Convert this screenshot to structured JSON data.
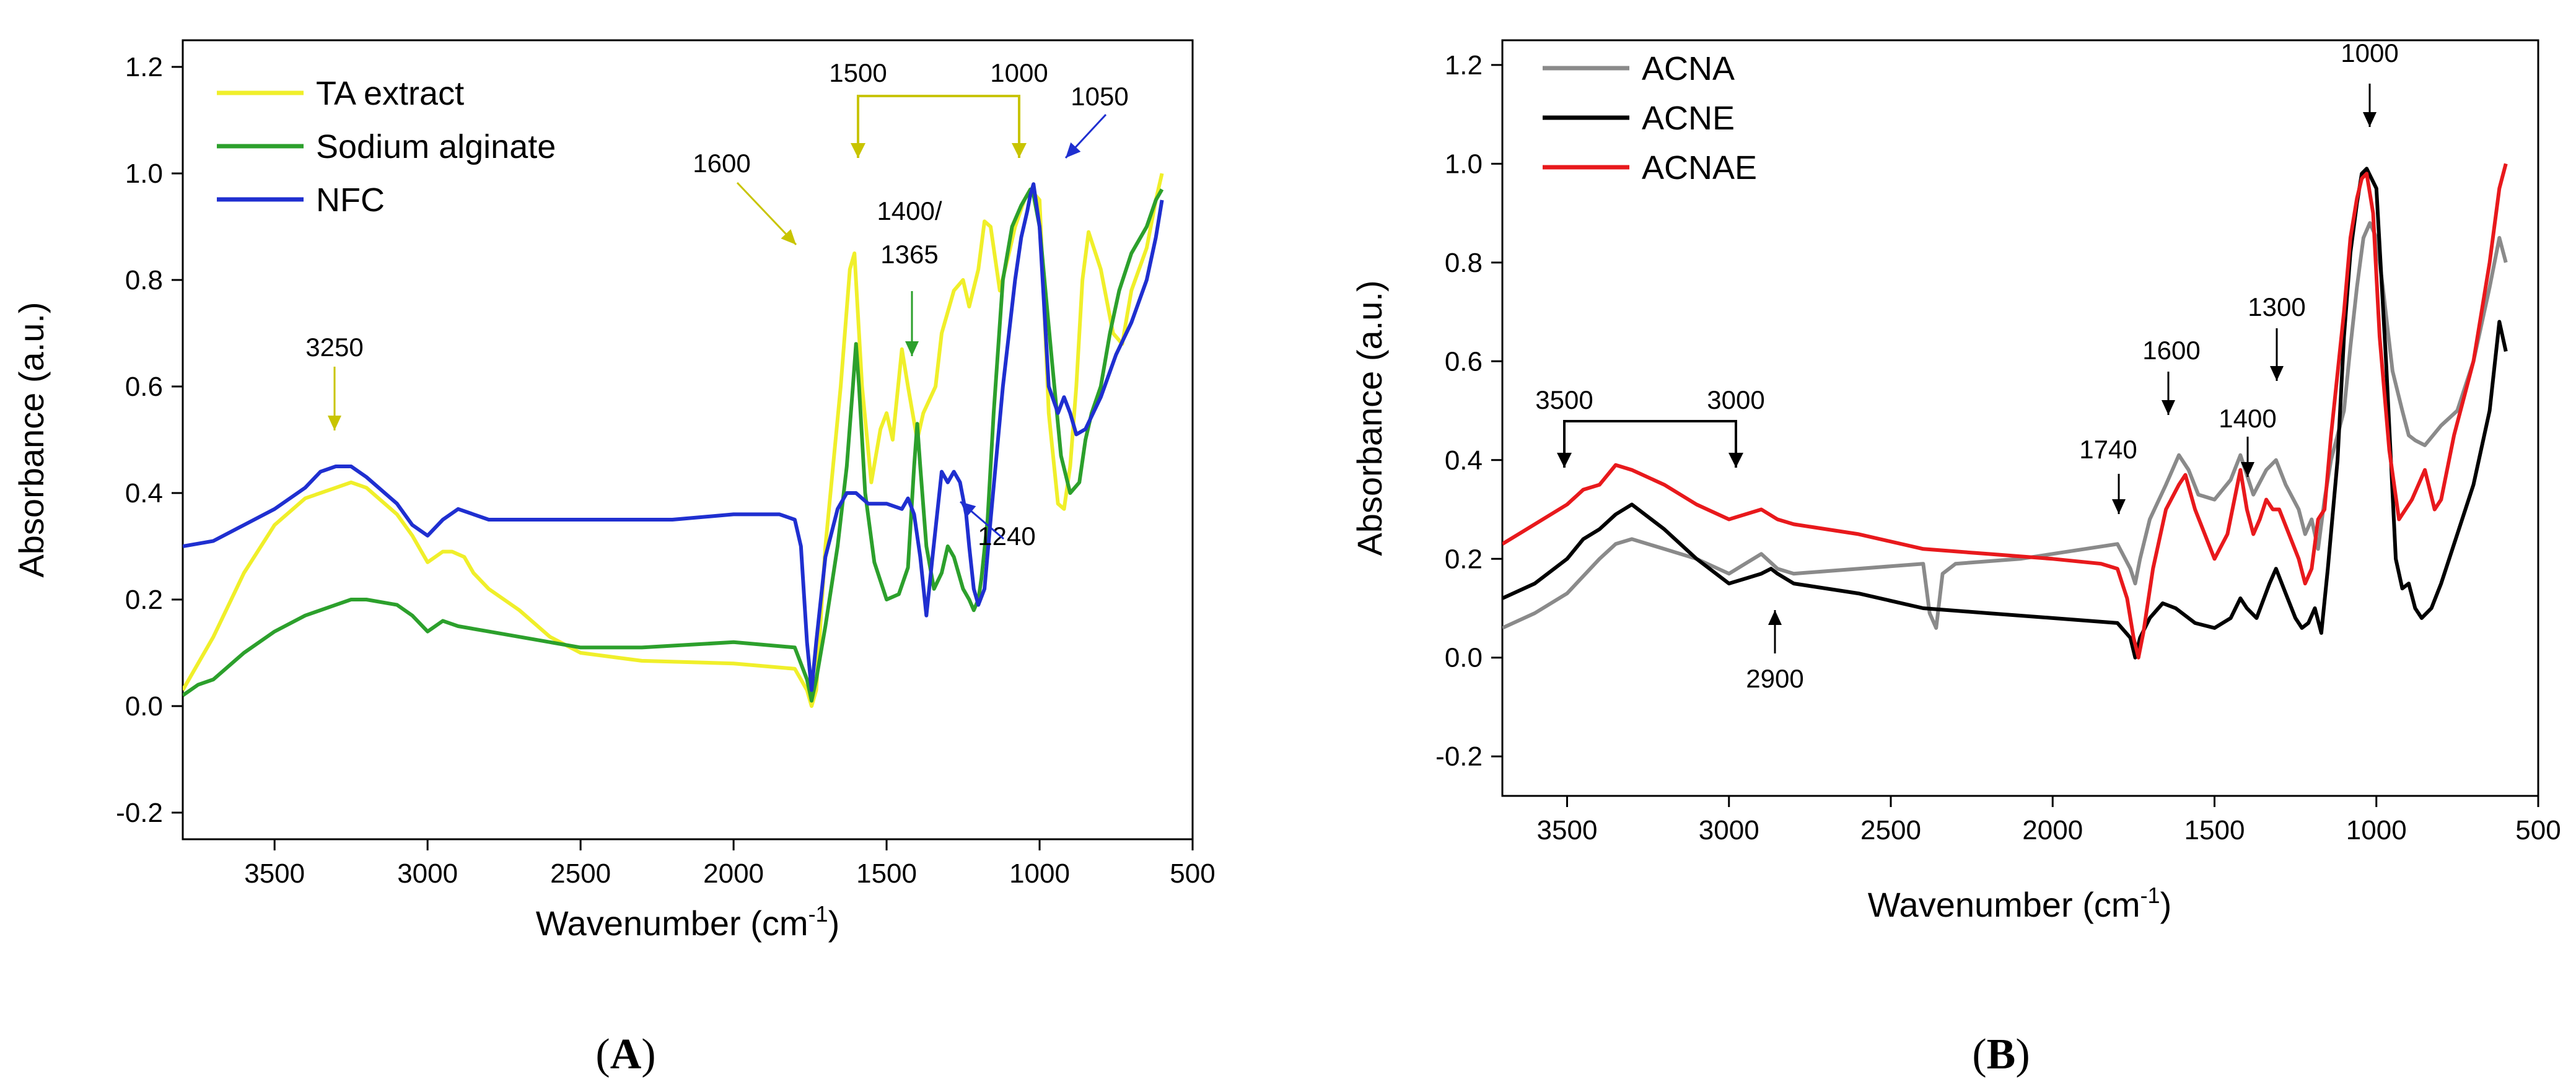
{
  "chart_data": [
    {
      "id": "A",
      "type": "line",
      "panel_label": "(A)",
      "xlabel": "Wavenumber (cm-1)",
      "xlabel_base": "Wavenumber (cm",
      "xlabel_sup": "-1",
      "xlabel_end": ")",
      "ylabel": "Absorbance (a.u.)",
      "xlim": [
        3800,
        500
      ],
      "ylim": [
        -0.25,
        1.25
      ],
      "xticks": [
        3500,
        3000,
        2500,
        2000,
        1500,
        1000,
        500
      ],
      "yticks": [
        -0.2,
        0.0,
        0.2,
        0.4,
        0.6,
        0.8,
        1.0,
        1.2
      ],
      "legend_position": "top-left",
      "series": [
        {
          "name": "TA extract",
          "color": "#f0ef2a",
          "x": [
            3800,
            3700,
            3600,
            3500,
            3400,
            3300,
            3250,
            3200,
            3100,
            3050,
            3000,
            2950,
            2920,
            2880,
            2850,
            2800,
            2700,
            2600,
            2500,
            2300,
            2000,
            1800,
            1760,
            1745,
            1730,
            1700,
            1650,
            1620,
            1605,
            1580,
            1550,
            1520,
            1500,
            1480,
            1450,
            1430,
            1400,
            1380,
            1340,
            1320,
            1280,
            1250,
            1230,
            1200,
            1180,
            1160,
            1130,
            1100,
            1080,
            1050,
            1030,
            1000,
            970,
            940,
            920,
            900,
            880,
            860,
            840,
            800,
            760,
            730,
            700,
            650,
            620,
            600
          ],
          "y": [
            0.03,
            0.13,
            0.25,
            0.34,
            0.39,
            0.41,
            0.42,
            0.41,
            0.36,
            0.32,
            0.27,
            0.29,
            0.29,
            0.28,
            0.25,
            0.22,
            0.18,
            0.13,
            0.1,
            0.085,
            0.08,
            0.07,
            0.03,
            0.0,
            0.03,
            0.3,
            0.6,
            0.82,
            0.85,
            0.6,
            0.42,
            0.52,
            0.55,
            0.5,
            0.67,
            0.6,
            0.5,
            0.55,
            0.6,
            0.7,
            0.78,
            0.8,
            0.75,
            0.82,
            0.91,
            0.9,
            0.78,
            0.85,
            0.9,
            0.95,
            0.97,
            0.95,
            0.55,
            0.38,
            0.37,
            0.45,
            0.6,
            0.8,
            0.89,
            0.82,
            0.7,
            0.68,
            0.78,
            0.86,
            0.95,
            1.0
          ]
        },
        {
          "name": "Sodium alginate",
          "color": "#2ca02c",
          "x": [
            3800,
            3750,
            3700,
            3600,
            3500,
            3400,
            3300,
            3250,
            3200,
            3100,
            3050,
            3000,
            2950,
            2900,
            2800,
            2700,
            2600,
            2500,
            2300,
            2000,
            1800,
            1760,
            1745,
            1730,
            1700,
            1660,
            1630,
            1610,
            1600,
            1590,
            1570,
            1540,
            1500,
            1460,
            1430,
            1410,
            1400,
            1390,
            1370,
            1345,
            1320,
            1300,
            1280,
            1250,
            1230,
            1215,
            1200,
            1190,
            1170,
            1150,
            1120,
            1090,
            1060,
            1040,
            1030,
            1020,
            1000,
            960,
            930,
            900,
            870,
            850,
            830,
            800,
            770,
            740,
            700,
            650,
            620,
            600
          ],
          "y": [
            0.02,
            0.04,
            0.05,
            0.1,
            0.14,
            0.17,
            0.19,
            0.2,
            0.2,
            0.19,
            0.17,
            0.14,
            0.16,
            0.15,
            0.14,
            0.13,
            0.12,
            0.11,
            0.11,
            0.12,
            0.11,
            0.05,
            0.01,
            0.05,
            0.15,
            0.3,
            0.45,
            0.6,
            0.68,
            0.6,
            0.4,
            0.27,
            0.2,
            0.21,
            0.26,
            0.45,
            0.53,
            0.45,
            0.3,
            0.22,
            0.25,
            0.3,
            0.28,
            0.22,
            0.2,
            0.18,
            0.2,
            0.24,
            0.35,
            0.55,
            0.8,
            0.9,
            0.94,
            0.96,
            0.97,
            0.96,
            0.9,
            0.65,
            0.47,
            0.4,
            0.42,
            0.5,
            0.55,
            0.6,
            0.7,
            0.78,
            0.85,
            0.9,
            0.95,
            0.97
          ]
        },
        {
          "name": "NFC",
          "color": "#1f2fd0",
          "x": [
            3800,
            3700,
            3600,
            3500,
            3400,
            3350,
            3300,
            3250,
            3200,
            3100,
            3050,
            3000,
            2950,
            2900,
            2850,
            2800,
            2600,
            2400,
            2200,
            2000,
            1850,
            1800,
            1780,
            1760,
            1745,
            1730,
            1700,
            1660,
            1630,
            1600,
            1560,
            1500,
            1450,
            1430,
            1410,
            1390,
            1370,
            1350,
            1320,
            1300,
            1280,
            1260,
            1240,
            1230,
            1215,
            1200,
            1180,
            1160,
            1120,
            1080,
            1060,
            1040,
            1030,
            1020,
            1000,
            970,
            940,
            920,
            900,
            880,
            850,
            800,
            750,
            700,
            650,
            620,
            600
          ],
          "y": [
            0.3,
            0.31,
            0.34,
            0.37,
            0.41,
            0.44,
            0.45,
            0.45,
            0.43,
            0.38,
            0.34,
            0.32,
            0.35,
            0.37,
            0.36,
            0.35,
            0.35,
            0.35,
            0.35,
            0.36,
            0.36,
            0.35,
            0.3,
            0.12,
            0.03,
            0.12,
            0.28,
            0.37,
            0.4,
            0.4,
            0.38,
            0.38,
            0.37,
            0.39,
            0.36,
            0.28,
            0.17,
            0.28,
            0.44,
            0.42,
            0.44,
            0.42,
            0.36,
            0.3,
            0.22,
            0.19,
            0.22,
            0.35,
            0.6,
            0.8,
            0.88,
            0.93,
            0.96,
            0.98,
            0.9,
            0.6,
            0.55,
            0.58,
            0.55,
            0.51,
            0.52,
            0.58,
            0.66,
            0.72,
            0.8,
            0.88,
            0.95
          ]
        }
      ],
      "annotations": [
        {
          "text": "3250",
          "color": "#c8c400"
        },
        {
          "text": "1500",
          "color": "#c8c400"
        },
        {
          "text": "1000",
          "color": "#c8c400"
        },
        {
          "text": "1600",
          "color": "#c8c400"
        },
        {
          "text": "1050",
          "color": "#1f2fd0"
        },
        {
          "text": "1400/",
          "color": "#2ca02c"
        },
        {
          "text": "1365",
          "color": "#1f2fd0"
        },
        {
          "text": "1240",
          "color": "#1f2fd0"
        }
      ]
    },
    {
      "id": "B",
      "type": "line",
      "panel_label": "(B)",
      "xlabel": "Wavenumber (cm-1)",
      "xlabel_base": "Wavenumber (cm",
      "xlabel_sup": "-1",
      "xlabel_end": ")",
      "ylabel": "Absorbance (a.u.)",
      "xlim": [
        3700,
        500
      ],
      "ylim": [
        -0.28,
        1.25
      ],
      "xticks": [
        3500,
        3000,
        2500,
        2000,
        1500,
        1000,
        500
      ],
      "yticks": [
        -0.2,
        0.0,
        0.2,
        0.4,
        0.6,
        0.8,
        1.0,
        1.2
      ],
      "legend_position": "top-left",
      "series": [
        {
          "name": "ACNA",
          "color": "#8a8a8a",
          "x": [
            3700,
            3600,
            3500,
            3400,
            3350,
            3300,
            3200,
            3100,
            3000,
            2950,
            2900,
            2850,
            2800,
            2600,
            2400,
            2380,
            2360,
            2340,
            2300,
            2100,
            1900,
            1800,
            1760,
            1745,
            1730,
            1700,
            1650,
            1610,
            1580,
            1550,
            1500,
            1450,
            1420,
            1380,
            1340,
            1310,
            1280,
            1240,
            1220,
            1200,
            1180,
            1160,
            1140,
            1100,
            1080,
            1060,
            1050,
            1040,
            1020,
            1000,
            980,
            950,
            920,
            900,
            880,
            850,
            800,
            750,
            700,
            650,
            620,
            600
          ],
          "y": [
            0.06,
            0.09,
            0.13,
            0.2,
            0.23,
            0.24,
            0.22,
            0.2,
            0.17,
            0.19,
            0.21,
            0.18,
            0.17,
            0.18,
            0.19,
            0.09,
            0.06,
            0.17,
            0.19,
            0.2,
            0.22,
            0.23,
            0.18,
            0.15,
            0.2,
            0.28,
            0.35,
            0.41,
            0.38,
            0.33,
            0.32,
            0.36,
            0.41,
            0.33,
            0.38,
            0.4,
            0.35,
            0.3,
            0.25,
            0.28,
            0.22,
            0.32,
            0.4,
            0.5,
            0.63,
            0.75,
            0.8,
            0.85,
            0.88,
            0.85,
            0.75,
            0.58,
            0.5,
            0.45,
            0.44,
            0.43,
            0.47,
            0.5,
            0.6,
            0.75,
            0.85,
            0.8
          ]
        },
        {
          "name": "ACNE",
          "color": "#000000",
          "x": [
            3700,
            3600,
            3500,
            3450,
            3400,
            3350,
            3300,
            3200,
            3100,
            3000,
            2950,
            2900,
            2870,
            2850,
            2800,
            2600,
            2400,
            2200,
            2000,
            1800,
            1760,
            1745,
            1730,
            1700,
            1660,
            1620,
            1600,
            1560,
            1500,
            1450,
            1420,
            1400,
            1370,
            1330,
            1310,
            1280,
            1250,
            1230,
            1210,
            1190,
            1170,
            1150,
            1120,
            1100,
            1080,
            1060,
            1045,
            1030,
            1000,
            970,
            940,
            920,
            900,
            880,
            860,
            830,
            800,
            750,
            700,
            650,
            620,
            600
          ],
          "y": [
            0.12,
            0.15,
            0.2,
            0.24,
            0.26,
            0.29,
            0.31,
            0.26,
            0.2,
            0.15,
            0.16,
            0.17,
            0.18,
            0.17,
            0.15,
            0.13,
            0.1,
            0.09,
            0.08,
            0.07,
            0.04,
            0.0,
            0.04,
            0.08,
            0.11,
            0.1,
            0.09,
            0.07,
            0.06,
            0.08,
            0.12,
            0.1,
            0.08,
            0.15,
            0.18,
            0.13,
            0.08,
            0.06,
            0.07,
            0.1,
            0.05,
            0.18,
            0.4,
            0.65,
            0.82,
            0.92,
            0.98,
            0.99,
            0.95,
            0.6,
            0.2,
            0.14,
            0.15,
            0.1,
            0.08,
            0.1,
            0.15,
            0.25,
            0.35,
            0.5,
            0.68,
            0.62
          ]
        },
        {
          "name": "ACNAE",
          "color": "#e8191c",
          "x": [
            3700,
            3650,
            3600,
            3500,
            3450,
            3400,
            3350,
            3300,
            3200,
            3100,
            3000,
            2950,
            2900,
            2850,
            2800,
            2600,
            2400,
            2200,
            2000,
            1850,
            1800,
            1770,
            1750,
            1735,
            1720,
            1690,
            1650,
            1610,
            1590,
            1560,
            1500,
            1460,
            1420,
            1400,
            1380,
            1360,
            1340,
            1320,
            1300,
            1270,
            1240,
            1220,
            1200,
            1180,
            1160,
            1140,
            1100,
            1080,
            1060,
            1045,
            1030,
            1010,
            990,
            960,
            930,
            910,
            890,
            870,
            850,
            820,
            800,
            760,
            700,
            650,
            620,
            600
          ],
          "y": [
            0.23,
            0.25,
            0.27,
            0.31,
            0.34,
            0.35,
            0.39,
            0.38,
            0.35,
            0.31,
            0.28,
            0.29,
            0.3,
            0.28,
            0.27,
            0.25,
            0.22,
            0.21,
            0.2,
            0.19,
            0.18,
            0.12,
            0.04,
            0.0,
            0.05,
            0.18,
            0.3,
            0.35,
            0.37,
            0.3,
            0.2,
            0.25,
            0.38,
            0.3,
            0.25,
            0.28,
            0.32,
            0.3,
            0.3,
            0.25,
            0.2,
            0.15,
            0.18,
            0.28,
            0.3,
            0.45,
            0.7,
            0.85,
            0.93,
            0.97,
            0.98,
            0.9,
            0.65,
            0.42,
            0.28,
            0.3,
            0.32,
            0.35,
            0.38,
            0.3,
            0.32,
            0.45,
            0.6,
            0.8,
            0.95,
            1.0
          ]
        }
      ],
      "annotations": [
        {
          "text": "1000",
          "color": "#000000"
        },
        {
          "text": "1300",
          "color": "#000000"
        },
        {
          "text": "1600",
          "color": "#000000"
        },
        {
          "text": "1400",
          "color": "#000000"
        },
        {
          "text": "3500",
          "color": "#000000"
        },
        {
          "text": "3000",
          "color": "#000000"
        },
        {
          "text": "1740",
          "color": "#000000"
        },
        {
          "text": "2900",
          "color": "#000000"
        }
      ]
    }
  ]
}
